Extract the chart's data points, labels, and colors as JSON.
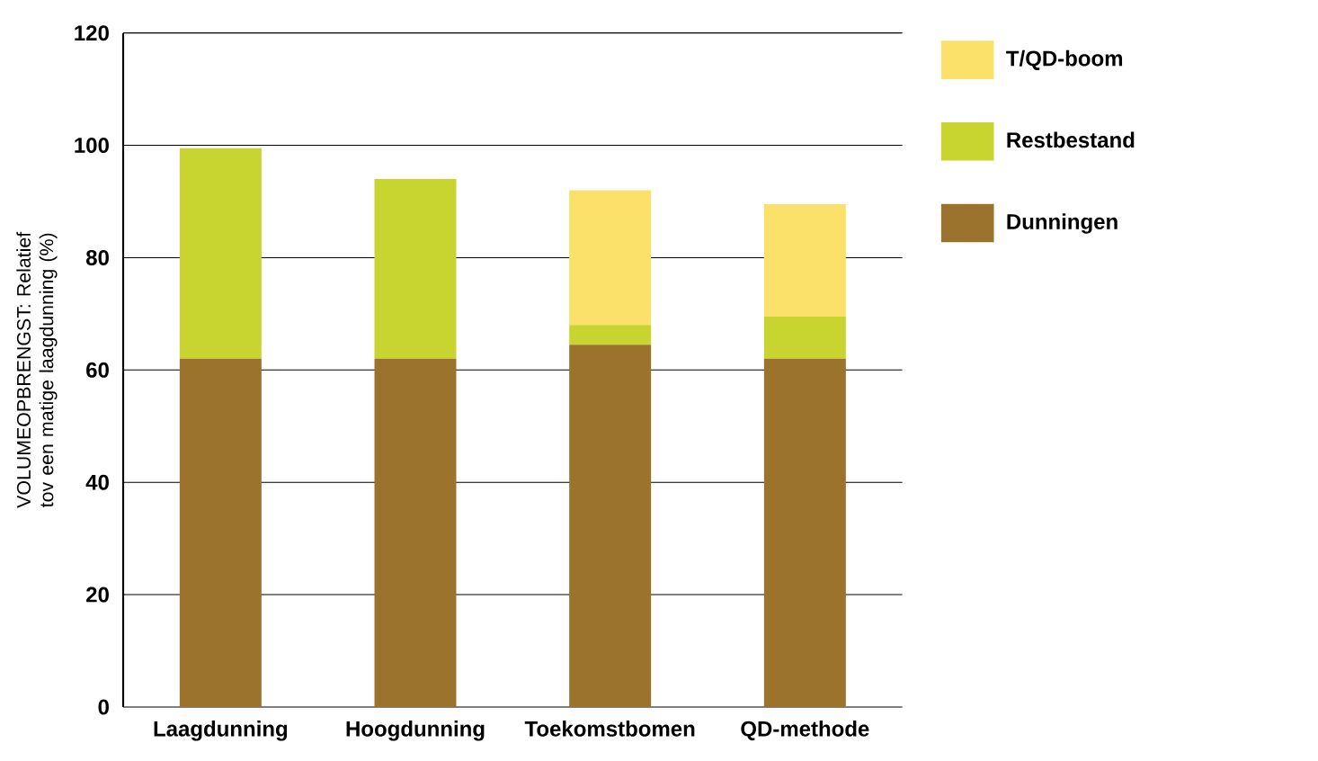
{
  "chart_data": {
    "type": "bar",
    "stacked": true,
    "ylabel": "VOLUMEOPBRENGST: Relatief tov een matige laagdunning  (%)",
    "categories": [
      "Laagdunning",
      "Hoogdunning",
      "Toekomstbomen",
      "QD-methode"
    ],
    "series": [
      {
        "name": "Dunningen",
        "color": "#9b732c",
        "values": [
          62,
          62,
          64.5,
          62
        ]
      },
      {
        "name": "Restbestand",
        "color": "#c8d530",
        "values": [
          37.5,
          32,
          3.5,
          7.5
        ]
      },
      {
        "name": "T/QD-boom",
        "color": "#fbe06a",
        "values": [
          null,
          null,
          24,
          20
        ]
      }
    ],
    "ylim": [
      0,
      120
    ],
    "yticks": [
      0,
      20,
      40,
      60,
      80,
      100,
      120
    ],
    "grid": "y",
    "legend": "right"
  }
}
